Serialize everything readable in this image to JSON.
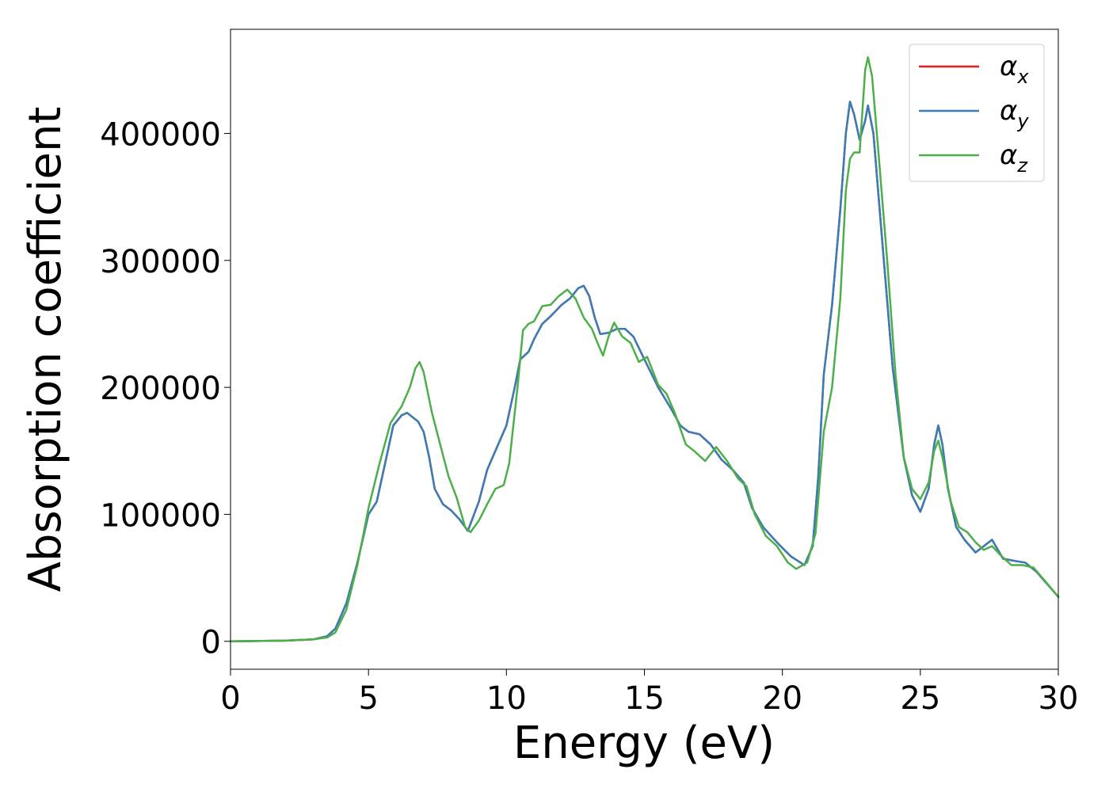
{
  "chart_data": {
    "type": "line",
    "title": "",
    "xlabel": "Energy (eV)",
    "ylabel": "Absorption coefficient",
    "xlim": [
      0,
      30
    ],
    "ylim": [
      -22000,
      482000
    ],
    "xticks": [
      0,
      5,
      10,
      15,
      20,
      25,
      30
    ],
    "xtick_labels": [
      "0",
      "5",
      "10",
      "15",
      "20",
      "25",
      "30"
    ],
    "yticks": [
      0,
      100000,
      200000,
      300000,
      400000
    ],
    "ytick_labels": [
      "0",
      "100000",
      "200000",
      "300000",
      "400000"
    ],
    "grid": false,
    "legend": "top-right",
    "series": [
      {
        "name": "α_x",
        "legend_base": "α",
        "legend_sub": "x",
        "color": "#e41a1c",
        "points": [
          [
            0,
            0
          ],
          [
            2,
            500
          ],
          [
            3,
            1500
          ],
          [
            3.5,
            4000
          ],
          [
            3.8,
            10000
          ],
          [
            4.2,
            30000
          ],
          [
            4.6,
            62000
          ],
          [
            5,
            100000
          ],
          [
            5.3,
            110000
          ],
          [
            5.6,
            140000
          ],
          [
            5.9,
            170000
          ],
          [
            6.2,
            178000
          ],
          [
            6.4,
            180000
          ],
          [
            6.8,
            173000
          ],
          [
            7,
            165000
          ],
          [
            7.2,
            145000
          ],
          [
            7.4,
            120000
          ],
          [
            7.7,
            108000
          ],
          [
            8,
            103000
          ],
          [
            8.3,
            96000
          ],
          [
            8.6,
            87000
          ],
          [
            9,
            110000
          ],
          [
            9.3,
            135000
          ],
          [
            9.6,
            150000
          ],
          [
            10,
            170000
          ],
          [
            10.3,
            200000
          ],
          [
            10.5,
            222000
          ],
          [
            10.8,
            228000
          ],
          [
            11,
            238000
          ],
          [
            11.3,
            250000
          ],
          [
            11.6,
            256000
          ],
          [
            12,
            265000
          ],
          [
            12.3,
            270000
          ],
          [
            12.6,
            278000
          ],
          [
            12.8,
            280000
          ],
          [
            13,
            272000
          ],
          [
            13.2,
            255000
          ],
          [
            13.4,
            242000
          ],
          [
            13.7,
            243000
          ],
          [
            14,
            246000
          ],
          [
            14.3,
            246000
          ],
          [
            14.6,
            240000
          ],
          [
            15,
            222000
          ],
          [
            15.5,
            200000
          ],
          [
            16,
            182000
          ],
          [
            16.3,
            170000
          ],
          [
            16.6,
            165000
          ],
          [
            17,
            163000
          ],
          [
            17.4,
            155000
          ],
          [
            17.8,
            143000
          ],
          [
            18.2,
            135000
          ],
          [
            18.6,
            125000
          ],
          [
            18.9,
            105000
          ],
          [
            19.3,
            90000
          ],
          [
            19.8,
            78000
          ],
          [
            20.3,
            67000
          ],
          [
            20.8,
            60000
          ],
          [
            21.1,
            75000
          ],
          [
            21.3,
            130000
          ],
          [
            21.5,
            210000
          ],
          [
            21.8,
            265000
          ],
          [
            22.1,
            340000
          ],
          [
            22.3,
            400000
          ],
          [
            22.45,
            425000
          ],
          [
            22.6,
            415000
          ],
          [
            22.8,
            395000
          ],
          [
            23,
            410000
          ],
          [
            23.1,
            422000
          ],
          [
            23.3,
            400000
          ],
          [
            23.6,
            320000
          ],
          [
            24,
            215000
          ],
          [
            24.4,
            145000
          ],
          [
            24.7,
            115000
          ],
          [
            25,
            102000
          ],
          [
            25.3,
            120000
          ],
          [
            25.5,
            155000
          ],
          [
            25.65,
            170000
          ],
          [
            25.8,
            155000
          ],
          [
            26,
            120000
          ],
          [
            26.3,
            90000
          ],
          [
            26.6,
            80000
          ],
          [
            27,
            70000
          ],
          [
            27.3,
            75000
          ],
          [
            27.6,
            80000
          ],
          [
            28,
            65000
          ],
          [
            28.5,
            63000
          ],
          [
            28.8,
            62000
          ],
          [
            29.2,
            55000
          ],
          [
            29.6,
            45000
          ],
          [
            30,
            35000
          ]
        ]
      },
      {
        "name": "α_y",
        "legend_base": "α",
        "legend_sub": "y",
        "color": "#377eb8",
        "points": [
          [
            0,
            0
          ],
          [
            2,
            500
          ],
          [
            3,
            1500
          ],
          [
            3.5,
            4000
          ],
          [
            3.8,
            10000
          ],
          [
            4.2,
            30000
          ],
          [
            4.6,
            62000
          ],
          [
            5,
            100000
          ],
          [
            5.3,
            110000
          ],
          [
            5.6,
            140000
          ],
          [
            5.9,
            170000
          ],
          [
            6.2,
            178000
          ],
          [
            6.4,
            180000
          ],
          [
            6.8,
            173000
          ],
          [
            7,
            165000
          ],
          [
            7.2,
            145000
          ],
          [
            7.4,
            120000
          ],
          [
            7.7,
            108000
          ],
          [
            8,
            103000
          ],
          [
            8.3,
            96000
          ],
          [
            8.6,
            87000
          ],
          [
            9,
            110000
          ],
          [
            9.3,
            135000
          ],
          [
            9.6,
            150000
          ],
          [
            10,
            170000
          ],
          [
            10.3,
            200000
          ],
          [
            10.5,
            222000
          ],
          [
            10.8,
            228000
          ],
          [
            11,
            238000
          ],
          [
            11.3,
            250000
          ],
          [
            11.6,
            256000
          ],
          [
            12,
            265000
          ],
          [
            12.3,
            270000
          ],
          [
            12.6,
            278000
          ],
          [
            12.8,
            280000
          ],
          [
            13,
            272000
          ],
          [
            13.2,
            255000
          ],
          [
            13.4,
            242000
          ],
          [
            13.7,
            243000
          ],
          [
            14,
            246000
          ],
          [
            14.3,
            246000
          ],
          [
            14.6,
            240000
          ],
          [
            15,
            222000
          ],
          [
            15.5,
            200000
          ],
          [
            16,
            182000
          ],
          [
            16.3,
            170000
          ],
          [
            16.6,
            165000
          ],
          [
            17,
            163000
          ],
          [
            17.4,
            155000
          ],
          [
            17.8,
            143000
          ],
          [
            18.2,
            135000
          ],
          [
            18.6,
            125000
          ],
          [
            18.9,
            105000
          ],
          [
            19.3,
            90000
          ],
          [
            19.8,
            78000
          ],
          [
            20.3,
            67000
          ],
          [
            20.8,
            60000
          ],
          [
            21.1,
            75000
          ],
          [
            21.3,
            130000
          ],
          [
            21.5,
            210000
          ],
          [
            21.8,
            265000
          ],
          [
            22.1,
            340000
          ],
          [
            22.3,
            400000
          ],
          [
            22.45,
            425000
          ],
          [
            22.6,
            415000
          ],
          [
            22.8,
            395000
          ],
          [
            23,
            410000
          ],
          [
            23.1,
            422000
          ],
          [
            23.3,
            400000
          ],
          [
            23.6,
            320000
          ],
          [
            24,
            215000
          ],
          [
            24.4,
            145000
          ],
          [
            24.7,
            115000
          ],
          [
            25,
            102000
          ],
          [
            25.3,
            120000
          ],
          [
            25.5,
            155000
          ],
          [
            25.65,
            170000
          ],
          [
            25.8,
            155000
          ],
          [
            26,
            120000
          ],
          [
            26.3,
            90000
          ],
          [
            26.6,
            80000
          ],
          [
            27,
            70000
          ],
          [
            27.3,
            75000
          ],
          [
            27.6,
            80000
          ],
          [
            28,
            65000
          ],
          [
            28.5,
            63000
          ],
          [
            28.8,
            62000
          ],
          [
            29.2,
            55000
          ],
          [
            29.6,
            45000
          ],
          [
            30,
            35000
          ]
        ]
      },
      {
        "name": "α_z",
        "legend_base": "α",
        "legend_sub": "z",
        "color": "#4daf4a",
        "points": [
          [
            0,
            0
          ],
          [
            2,
            500
          ],
          [
            3,
            1500
          ],
          [
            3.5,
            3000
          ],
          [
            3.8,
            7000
          ],
          [
            4.2,
            25000
          ],
          [
            4.6,
            60000
          ],
          [
            5,
            105000
          ],
          [
            5.4,
            140000
          ],
          [
            5.8,
            172000
          ],
          [
            6.2,
            185000
          ],
          [
            6.5,
            200000
          ],
          [
            6.7,
            215000
          ],
          [
            6.85,
            220000
          ],
          [
            7,
            212000
          ],
          [
            7.3,
            180000
          ],
          [
            7.6,
            155000
          ],
          [
            7.9,
            130000
          ],
          [
            8.2,
            113000
          ],
          [
            8.5,
            90000
          ],
          [
            8.7,
            86000
          ],
          [
            9,
            95000
          ],
          [
            9.3,
            108000
          ],
          [
            9.6,
            120000
          ],
          [
            9.9,
            123000
          ],
          [
            10.1,
            140000
          ],
          [
            10.4,
            200000
          ],
          [
            10.6,
            245000
          ],
          [
            10.8,
            250000
          ],
          [
            11,
            252000
          ],
          [
            11.3,
            264000
          ],
          [
            11.6,
            265000
          ],
          [
            11.9,
            272000
          ],
          [
            12.2,
            277000
          ],
          [
            12.5,
            270000
          ],
          [
            12.8,
            255000
          ],
          [
            13.1,
            246000
          ],
          [
            13.3,
            235000
          ],
          [
            13.5,
            225000
          ],
          [
            13.7,
            240000
          ],
          [
            13.9,
            251000
          ],
          [
            14.2,
            240000
          ],
          [
            14.5,
            235000
          ],
          [
            14.8,
            220000
          ],
          [
            15.1,
            224000
          ],
          [
            15.5,
            202000
          ],
          [
            15.8,
            195000
          ],
          [
            16.1,
            180000
          ],
          [
            16.5,
            155000
          ],
          [
            16.8,
            150000
          ],
          [
            17.2,
            142000
          ],
          [
            17.6,
            153000
          ],
          [
            18,
            142000
          ],
          [
            18.4,
            128000
          ],
          [
            18.7,
            122000
          ],
          [
            19,
            100000
          ],
          [
            19.4,
            83000
          ],
          [
            19.8,
            75000
          ],
          [
            20.2,
            62000
          ],
          [
            20.5,
            57000
          ],
          [
            20.9,
            62000
          ],
          [
            21.2,
            85000
          ],
          [
            21.5,
            165000
          ],
          [
            21.8,
            200000
          ],
          [
            22.1,
            270000
          ],
          [
            22.3,
            355000
          ],
          [
            22.45,
            380000
          ],
          [
            22.6,
            385000
          ],
          [
            22.8,
            385000
          ],
          [
            23,
            450000
          ],
          [
            23.1,
            460000
          ],
          [
            23.25,
            445000
          ],
          [
            23.5,
            380000
          ],
          [
            23.8,
            300000
          ],
          [
            24.1,
            210000
          ],
          [
            24.4,
            145000
          ],
          [
            24.7,
            120000
          ],
          [
            25,
            112000
          ],
          [
            25.3,
            125000
          ],
          [
            25.5,
            150000
          ],
          [
            25.65,
            158000
          ],
          [
            25.8,
            145000
          ],
          [
            26.1,
            110000
          ],
          [
            26.4,
            90000
          ],
          [
            26.7,
            86000
          ],
          [
            27,
            78000
          ],
          [
            27.3,
            72000
          ],
          [
            27.6,
            75000
          ],
          [
            27.9,
            68000
          ],
          [
            28.3,
            60000
          ],
          [
            28.7,
            60000
          ],
          [
            29.1,
            58000
          ],
          [
            29.5,
            48000
          ],
          [
            30,
            35000
          ]
        ]
      }
    ]
  }
}
